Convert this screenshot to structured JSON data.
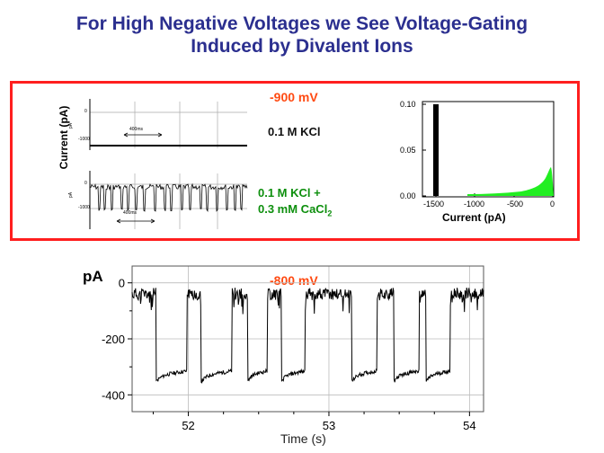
{
  "title_line1": "For High Negative Voltages we See Voltage-Gating",
  "title_line2": "Induced by Divalent Ions",
  "top_panel": {
    "voltage": "-900 mV",
    "ylabel": "Current (pA)",
    "trace1": {
      "ticks": [
        "0",
        "-1000"
      ],
      "unit": "pA",
      "scale_bar": "400ms",
      "condition": "0.1 M KCl"
    },
    "trace2": {
      "ticks": [
        "0",
        "-1000"
      ],
      "unit": "pA",
      "scale_bar": "400ms",
      "condition_line1": "0.1 M KCl +",
      "condition_line2_main": "0.3 mM CaCl",
      "condition_line2_sub": "2"
    },
    "histogram": {
      "xlabel": "Current (pA)",
      "y_ticks": [
        "0.10",
        "0.05",
        "0.00"
      ],
      "x_ticks": [
        "-1500",
        "-1000",
        "-500",
        "0"
      ],
      "colors": {
        "kcl": "#000000",
        "cacl2": "#22ee22"
      }
    }
  },
  "chart_data": {
    "type": "line",
    "title": "-800 mV",
    "xlabel": "Time (s)",
    "ylabel": "pA",
    "xlim": [
      51.6,
      54.1
    ],
    "ylim": [
      -460,
      60
    ],
    "x_ticks": [
      52,
      53,
      54
    ],
    "y_ticks": [
      0,
      -200,
      -400
    ],
    "closed_level": -330,
    "open_level": -40,
    "closure_intervals": [
      [
        51.77,
        51.99
      ],
      [
        52.09,
        52.31
      ],
      [
        52.42,
        52.56
      ],
      [
        52.66,
        52.83
      ],
      [
        53.16,
        53.34
      ],
      [
        53.46,
        53.64
      ],
      [
        53.69,
        53.86
      ]
    ],
    "color": "#000000"
  }
}
